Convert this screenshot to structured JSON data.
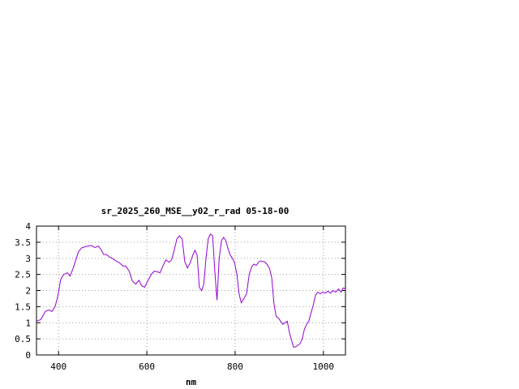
{
  "chart_data": {
    "type": "line",
    "title": "sr_2025_260_MSE__y02_r_rad 05-18-00",
    "xlabel": "nm",
    "ylabel": "",
    "xlim": [
      350,
      1050
    ],
    "ylim": [
      0,
      4
    ],
    "grid": true,
    "x_ticks": [
      400,
      600,
      800,
      1000
    ],
    "y_ticks": [
      0,
      0.5,
      1,
      1.5,
      2,
      2.5,
      3,
      3.5,
      4
    ],
    "x_tick_labels": [
      "400",
      "600",
      "800",
      "1000"
    ],
    "y_tick_labels": [
      "0",
      "0.5",
      "1",
      "1.5",
      "2",
      "2.5",
      "3",
      "3.5",
      "4"
    ],
    "colors": {
      "series": "#9400d3",
      "grid": "#a0a0a0",
      "axis": "#000000"
    },
    "series": [
      {
        "x": [
          350,
          360,
          370,
          378,
          385,
          392,
          398,
          405,
          412,
          420,
          426,
          432,
          438,
          445,
          452,
          460,
          467,
          475,
          482,
          490,
          496,
          502,
          508,
          515,
          522,
          530,
          538,
          546,
          552,
          560,
          567,
          575,
          582,
          588,
          595,
          602,
          610,
          617,
          624,
          630,
          636,
          643,
          650,
          656,
          662,
          668,
          674,
          680,
          686,
          692,
          698,
          704,
          709,
          714,
          719,
          724,
          729,
          734,
          739,
          744,
          749,
          754,
          759,
          764,
          769,
          774,
          779,
          784,
          789,
          794,
          799,
          804,
          809,
          814,
          820,
          826,
          832,
          838,
          843,
          848,
          853,
          858,
          863,
          868,
          873,
          878,
          883,
          888,
          893,
          898,
          903,
          908,
          913,
          918,
          923,
          928,
          932,
          937,
          942,
          947,
          952,
          957,
          962,
          967,
          972,
          977,
          982,
          987,
          993,
          998,
          1004,
          1010,
          1016,
          1022,
          1028,
          1034,
          1040,
          1045,
          1050
        ],
        "y": [
          1.05,
          1.1,
          1.35,
          1.4,
          1.35,
          1.5,
          1.8,
          2.35,
          2.5,
          2.55,
          2.45,
          2.65,
          2.9,
          3.2,
          3.32,
          3.36,
          3.38,
          3.4,
          3.33,
          3.38,
          3.28,
          3.12,
          3.12,
          3.05,
          3.0,
          2.92,
          2.86,
          2.76,
          2.76,
          2.6,
          2.3,
          2.2,
          2.32,
          2.15,
          2.1,
          2.3,
          2.5,
          2.6,
          2.58,
          2.55,
          2.75,
          2.95,
          2.88,
          2.95,
          3.25,
          3.6,
          3.7,
          3.6,
          2.9,
          2.7,
          2.85,
          3.1,
          3.25,
          3.1,
          2.1,
          2.0,
          2.2,
          3.0,
          3.6,
          3.75,
          3.7,
          2.6,
          1.7,
          3.0,
          3.55,
          3.65,
          3.55,
          3.3,
          3.1,
          3.0,
          2.85,
          2.5,
          1.9,
          1.62,
          1.75,
          1.9,
          2.5,
          2.75,
          2.82,
          2.78,
          2.88,
          2.92,
          2.9,
          2.88,
          2.8,
          2.68,
          2.4,
          1.6,
          1.2,
          1.15,
          1.05,
          0.95,
          1.0,
          1.05,
          0.7,
          0.45,
          0.25,
          0.25,
          0.3,
          0.35,
          0.5,
          0.8,
          0.95,
          1.05,
          1.3,
          1.55,
          1.85,
          1.95,
          1.9,
          1.95,
          1.92,
          1.98,
          1.92,
          2.0,
          1.95,
          2.05,
          1.95,
          2.08,
          2.05
        ]
      }
    ]
  }
}
